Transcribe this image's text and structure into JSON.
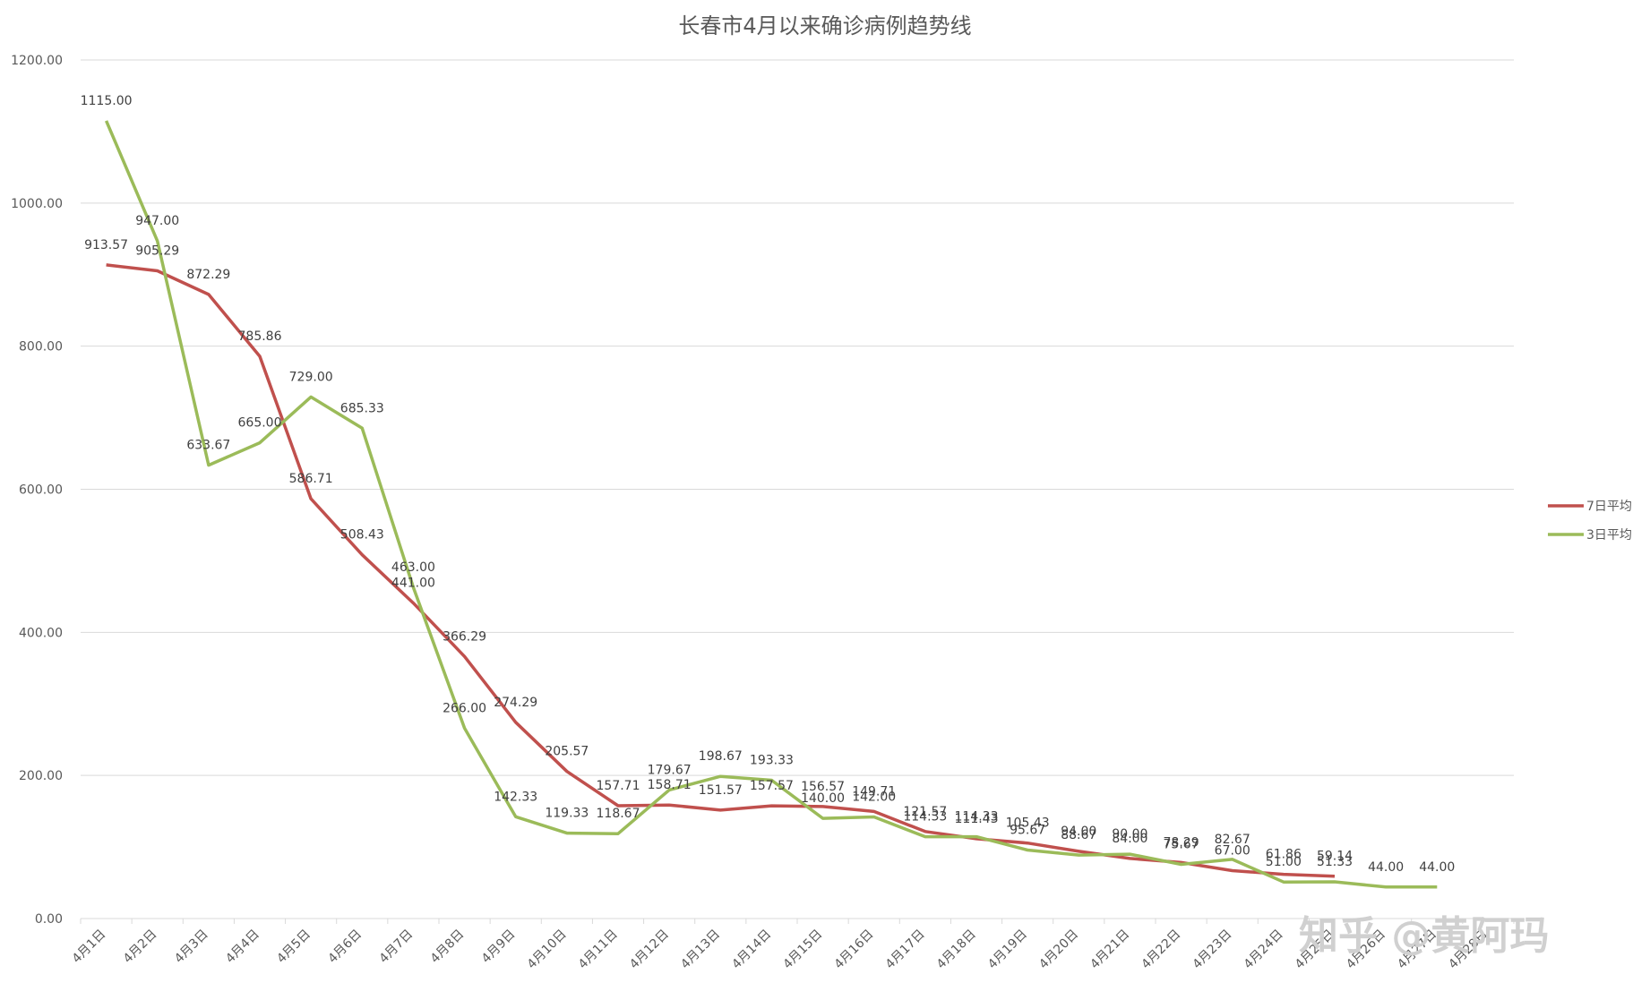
{
  "chart_data": {
    "type": "line",
    "title": "长春市4月以来确诊病例趋势线",
    "xlabel": "",
    "ylabel": "",
    "ylim": [
      0,
      1200
    ],
    "yticks": [
      "0.00",
      "200.00",
      "400.00",
      "600.00",
      "800.00",
      "1000.00",
      "1200.00"
    ],
    "categories": [
      "4月1日",
      "4月2日",
      "4月3日",
      "4月4日",
      "4月5日",
      "4月6日",
      "4月7日",
      "4月8日",
      "4月9日",
      "4月10日",
      "4月11日",
      "4月12日",
      "4月13日",
      "4月14日",
      "4月15日",
      "4月16日",
      "4月17日",
      "4月18日",
      "4月19日",
      "4月20日",
      "4月21日",
      "4月22日",
      "4月23日",
      "4月24日",
      "4月25日",
      "4月26日",
      "4月27日",
      "4月28日"
    ],
    "grid": true,
    "legend_position": "right",
    "series": [
      {
        "name": "7日平均",
        "color": "#c0504d",
        "values": [
          913.57,
          905.29,
          872.29,
          785.86,
          586.71,
          508.43,
          441.0,
          366.29,
          274.29,
          205.57,
          157.71,
          158.71,
          151.57,
          157.57,
          156.57,
          149.71,
          121.57,
          111.43,
          105.43,
          94.0,
          84.0,
          78.29,
          67.0,
          61.86,
          59.14,
          null,
          null,
          null
        ],
        "labels": [
          "913.57",
          "905.29",
          "872.29",
          "785.86",
          "586.71",
          "508.43",
          "441.00",
          "366.29",
          "274.29",
          "205.57",
          "157.71",
          "158.71",
          "151.57",
          "157.57",
          "156.57",
          "149.71",
          "121.57",
          "111.43",
          "105.43",
          "94.00",
          "84.00",
          "78.29",
          "67.00",
          "61.86",
          "59.14",
          "",
          "",
          ""
        ]
      },
      {
        "name": "3日平均",
        "color": "#9bbb59",
        "values": [
          1115.0,
          947.0,
          633.67,
          665.0,
          729.0,
          685.33,
          463.0,
          266.0,
          142.33,
          119.33,
          118.67,
          179.67,
          198.67,
          193.33,
          140.0,
          142.0,
          114.33,
          114.33,
          95.67,
          88.67,
          90.0,
          75.67,
          82.67,
          51.0,
          51.33,
          44.0,
          44.0,
          null
        ],
        "labels": [
          "1115.00",
          "947.00",
          "633.67",
          "665.00",
          "729.00",
          "685.33",
          "463.00",
          "266.00",
          "142.33",
          "119.33",
          "118.67",
          "179.67",
          "198.67",
          "193.33",
          "140.00",
          "142.00",
          "114.33",
          "114.33",
          "95.67",
          "88.67",
          "90.00",
          "75.67",
          "82.67",
          "51.00",
          "51.33",
          "44.00",
          "44.00",
          ""
        ]
      }
    ]
  },
  "watermark": "知乎 @黄阿玛"
}
